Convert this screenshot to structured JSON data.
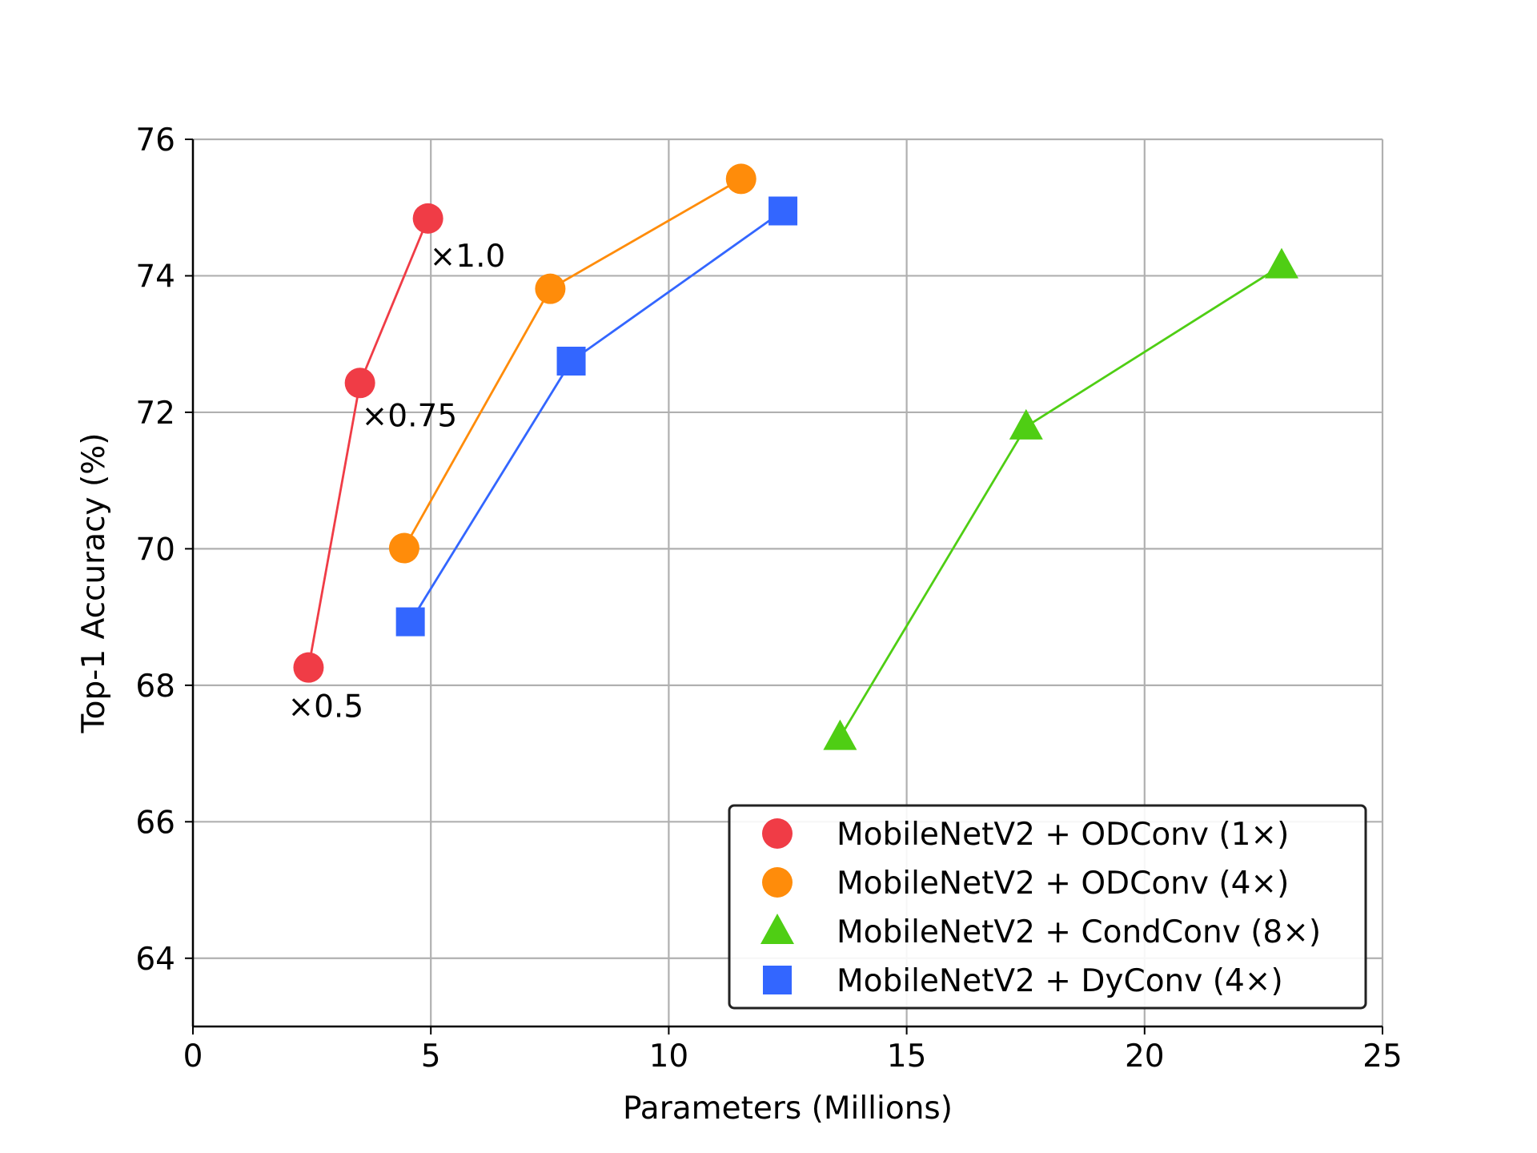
{
  "chart_data": {
    "type": "line",
    "title": "",
    "xlabel": "Parameters (Millions)",
    "ylabel": "Top-1 Accuracy (%)",
    "xlim": [
      0,
      25
    ],
    "ylim": [
      63,
      76
    ],
    "xticks": [
      0,
      5,
      10,
      15,
      20,
      25
    ],
    "yticks": [
      64,
      66,
      68,
      70,
      72,
      74,
      76
    ],
    "grid": true,
    "legend_position": "bottom-right",
    "series": [
      {
        "name": "MobileNetV2 + ODConv (1×)",
        "color": "#f03c46",
        "marker": "circle",
        "x": [
          2.43,
          3.51,
          4.94
        ],
        "y": [
          68.26,
          72.43,
          74.84
        ]
      },
      {
        "name": "MobileNetV2 + ODConv (4×)",
        "color": "#ff8c0a",
        "marker": "circle",
        "x": [
          4.44,
          7.51,
          11.52
        ],
        "y": [
          70.01,
          73.81,
          75.42
        ]
      },
      {
        "name": "MobileNetV2 + CondConv (8×)",
        "color": "#4fce14",
        "marker": "triangle",
        "x": [
          13.6,
          17.51,
          22.88
        ],
        "y": [
          67.24,
          71.79,
          74.15
        ]
      },
      {
        "name": "MobileNetV2 + DyConv (4×)",
        "color": "#3366ff",
        "marker": "square",
        "x": [
          4.57,
          7.95,
          12.4
        ],
        "y": [
          68.93,
          72.75,
          74.95
        ]
      }
    ],
    "annotations": [
      {
        "text": "×0.5",
        "x": 2.43,
        "y": 68.26
      },
      {
        "text": "×0.75",
        "x": 3.51,
        "y": 72.43
      },
      {
        "text": "×1.0",
        "x": 4.94,
        "y": 74.84
      }
    ]
  }
}
